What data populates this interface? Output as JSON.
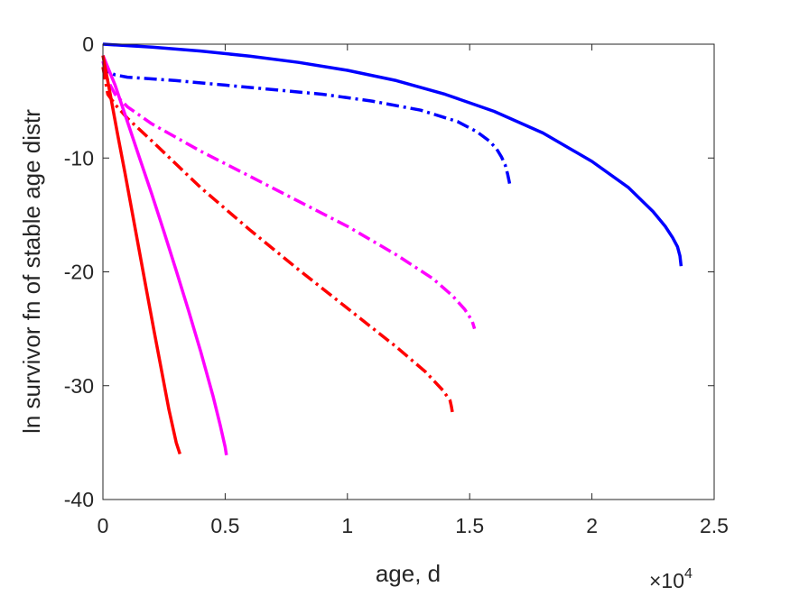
{
  "chart_data": {
    "type": "line",
    "title": "",
    "xlabel": "age, d",
    "ylabel": "ln survivor fn of stable age distr",
    "x_exponent_label": {
      "base": "×10",
      "power": "4"
    },
    "xlim": [
      0,
      25000
    ],
    "ylim": [
      -40,
      0
    ],
    "x_ticks": [
      0,
      5000,
      10000,
      15000,
      20000,
      25000
    ],
    "x_tick_labels": [
      "0",
      "0.5",
      "1",
      "1.5",
      "2",
      "2.5"
    ],
    "y_ticks": [
      0,
      -10,
      -20,
      -30,
      -40
    ],
    "y_tick_labels": [
      "0",
      "-10",
      "-20",
      "-30",
      "-40"
    ],
    "grid": false,
    "box": true,
    "legend": null,
    "series": [
      {
        "color": "#0000ff",
        "style": "solid",
        "x": [
          0,
          2000,
          4000,
          6000,
          8000,
          10000,
          12000,
          14000,
          16000,
          18000,
          20000,
          21500,
          22500,
          23000,
          23300,
          23500,
          23600,
          23650
        ],
        "y": [
          0,
          -0.25,
          -0.6,
          -1.05,
          -1.6,
          -2.3,
          -3.2,
          -4.4,
          -5.9,
          -7.8,
          -10.3,
          -12.6,
          -14.7,
          -16.0,
          -17.0,
          -17.8,
          -18.6,
          -19.5
        ]
      },
      {
        "color": "#0000ff",
        "style": "dashdot",
        "x": [
          0,
          200,
          500,
          1000,
          3000,
          5000,
          7000,
          9000,
          11000,
          13000,
          14500,
          15300,
          15800,
          16100,
          16300,
          16450,
          16550,
          16650
        ],
        "y": [
          -1.5,
          -2.4,
          -2.7,
          -2.9,
          -3.2,
          -3.6,
          -4.0,
          -4.4,
          -5.0,
          -5.8,
          -6.8,
          -7.7,
          -8.5,
          -9.2,
          -9.9,
          -10.6,
          -11.4,
          -12.4
        ]
      },
      {
        "color": "#ff00ff",
        "style": "dashdot",
        "x": [
          0,
          200,
          500,
          1000,
          2000,
          4000,
          6000,
          8000,
          10000,
          12000,
          13500,
          14300,
          14800,
          15100,
          15200
        ],
        "y": [
          -1.5,
          -3.2,
          -4.4,
          -5.5,
          -7.0,
          -9.4,
          -11.6,
          -13.8,
          -16.0,
          -18.5,
          -20.6,
          -22.1,
          -23.3,
          -24.3,
          -25.0
        ]
      },
      {
        "color": "#ff0000",
        "style": "dashdot",
        "x": [
          0,
          200,
          500,
          1000,
          2000,
          4000,
          6000,
          8000,
          10000,
          12000,
          13200,
          13900,
          14200,
          14250,
          14300
        ],
        "y": [
          -2.0,
          -4.4,
          -5.3,
          -6.5,
          -8.5,
          -12.6,
          -16.3,
          -19.8,
          -23.2,
          -26.6,
          -28.8,
          -30.4,
          -31.3,
          -31.8,
          -32.4
        ]
      },
      {
        "color": "#ff00ff",
        "style": "solid",
        "x": [
          0,
          500,
          1000,
          1500,
          2000,
          2500,
          3000,
          3500,
          4000,
          4500,
          4800,
          5000,
          5050
        ],
        "y": [
          -1.0,
          -3.6,
          -6.8,
          -10.0,
          -13.2,
          -16.5,
          -19.9,
          -23.4,
          -27.0,
          -30.9,
          -33.5,
          -35.4,
          -36.1
        ]
      },
      {
        "color": "#ff0000",
        "style": "solid",
        "x": [
          0,
          300,
          600,
          900,
          1200,
          1500,
          1800,
          2100,
          2400,
          2700,
          3000,
          3150
        ],
        "y": [
          -1.0,
          -4.4,
          -7.9,
          -11.3,
          -14.8,
          -18.3,
          -21.8,
          -25.3,
          -28.7,
          -32.1,
          -35.0,
          -36.0
        ]
      }
    ]
  }
}
